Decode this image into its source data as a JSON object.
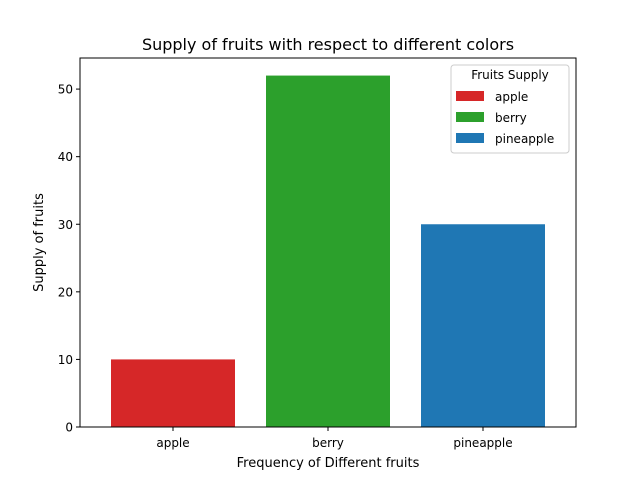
{
  "chart_data": {
    "type": "bar",
    "title": "Supply of fruits with respect to different colors",
    "xlabel": "Frequency of Different fruits",
    "ylabel": "Supply of fruits",
    "categories": [
      "apple",
      "berry",
      "pineapple"
    ],
    "values": [
      10,
      52,
      30
    ],
    "colors": [
      "#d62728",
      "#2ca02c",
      "#1f77b4"
    ],
    "ylim": [
      0,
      54.6
    ],
    "yticks": [
      0,
      10,
      20,
      30,
      40,
      50
    ],
    "legend": {
      "title": "Fruits Supply",
      "placement": "top-right",
      "entries": [
        "apple",
        "berry",
        "pineapple"
      ]
    },
    "grid": false
  }
}
